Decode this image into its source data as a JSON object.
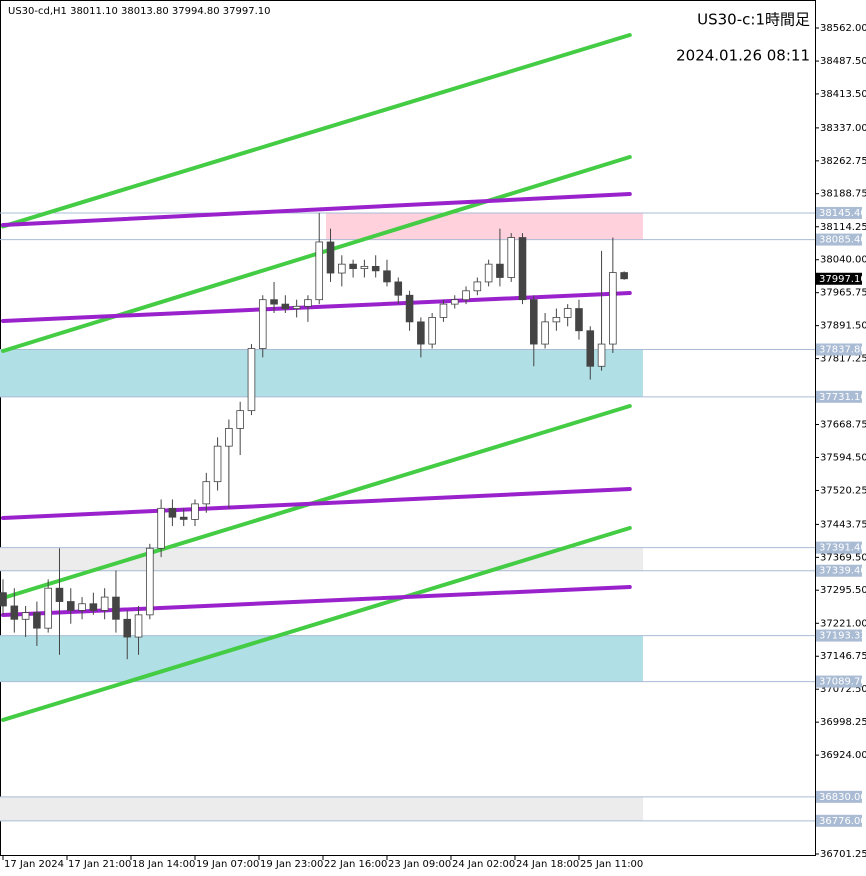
{
  "chart_data": {
    "type": "candlestick",
    "info": "US30-cd,H1  38011.10 38013.80 37994.80 37997.10",
    "title": "US30-c:1時間足",
    "subtitle": "2024.01.26 08:11",
    "xlim": [
      -0.8,
      215.7
    ],
    "ylim": [
      36699,
      38625.1
    ],
    "xticks": [
      {
        "value": 0,
        "label": "17 Jan 2024"
      },
      {
        "value": 17,
        "label": "17 Jan 21:00"
      },
      {
        "value": 34,
        "label": "18 Jan 14:00"
      },
      {
        "value": 51,
        "label": "19 Jan 07:00"
      },
      {
        "value": 68,
        "label": "19 Jan 23:00"
      },
      {
        "value": 85,
        "label": "22 Jan 16:00"
      },
      {
        "value": 102,
        "label": "23 Jan 09:00"
      },
      {
        "value": 119,
        "label": "24 Jan 02:00"
      },
      {
        "value": 136,
        "label": "24 Jan 18:00"
      },
      {
        "value": 153,
        "label": "25 Jan 11:00"
      }
    ],
    "yticks": [
      {
        "value": 38562,
        "label": "38562.00"
      },
      {
        "value": 38487.5,
        "label": "38487.50"
      },
      {
        "value": 38413.5,
        "label": "38413.50"
      },
      {
        "value": 38337,
        "label": "38337.00"
      },
      {
        "value": 38262.75,
        "label": "38262.75"
      },
      {
        "value": 38188.75,
        "label": "38188.75"
      },
      {
        "value": 38114.25,
        "label": "38114.25"
      },
      {
        "value": 38040,
        "label": "38040.00"
      },
      {
        "value": 37965.75,
        "label": "37965.75"
      },
      {
        "value": 37891.5,
        "label": "37891.50"
      },
      {
        "value": 37817.25,
        "label": "37817.25"
      },
      {
        "value": 37668.75,
        "label": "37668.75"
      },
      {
        "value": 37594.5,
        "label": "37594.50"
      },
      {
        "value": 37520.25,
        "label": "37520.25"
      },
      {
        "value": 37443.75,
        "label": "37443.75"
      },
      {
        "value": 37369.5,
        "label": "37369.50"
      },
      {
        "value": 37295.5,
        "label": "37295.50"
      },
      {
        "value": 37221,
        "label": "37221.00"
      },
      {
        "value": 37146.75,
        "label": "37146.75"
      },
      {
        "value": 37072.5,
        "label": "37072.50"
      },
      {
        "value": 36998.25,
        "label": "36998.25"
      },
      {
        "value": 36924,
        "label": "36924.00"
      },
      {
        "value": 36701.25,
        "label": "36701.25"
      }
    ],
    "x": [
      0,
      3,
      6,
      9,
      12,
      15,
      18,
      21,
      24,
      27,
      30,
      33,
      36,
      39,
      42,
      45,
      48,
      51,
      54,
      57,
      60,
      63,
      66,
      69,
      72,
      75,
      78,
      81,
      84,
      87,
      90,
      93,
      96,
      99,
      102,
      105,
      108,
      111,
      114,
      117,
      120,
      123,
      126,
      129,
      132,
      135,
      138,
      141,
      144,
      147,
      150,
      153,
      156,
      159,
      162,
      165
    ],
    "open": [
      37290,
      37260,
      37230,
      37245,
      37210,
      37300,
      37270,
      37250,
      37265,
      37250,
      37280,
      37230,
      37190,
      37240,
      37390,
      37480,
      37460,
      37455,
      37490,
      37540,
      37620,
      37660,
      37700,
      37840,
      37950,
      37940,
      37930,
      37935,
      37950,
      38080,
      38010,
      38030,
      38020,
      38025,
      38015,
      37990,
      37960,
      37900,
      37850,
      37910,
      37940,
      37950,
      37970,
      37990,
      38030,
      38000,
      38090,
      37950,
      37850,
      37900,
      37910,
      37930,
      37880,
      37800,
      37850,
      38011.1
    ],
    "high": [
      37320,
      37300,
      37260,
      37270,
      37320,
      37390,
      37300,
      37280,
      37290,
      37300,
      37340,
      37250,
      37260,
      37400,
      37500,
      37500,
      37480,
      37500,
      37560,
      37640,
      37680,
      37720,
      37850,
      37960,
      37990,
      37960,
      37950,
      37960,
      38145,
      38110,
      38050,
      38040,
      38040,
      38050,
      38040,
      38000,
      37970,
      37910,
      37920,
      37950,
      37960,
      37980,
      38000,
      38040,
      38110,
      38100,
      38100,
      37960,
      37920,
      37930,
      37940,
      37950,
      37890,
      38060,
      38090,
      38013.8
    ],
    "low": [
      37240,
      37200,
      37190,
      37170,
      37200,
      37150,
      37220,
      37230,
      37240,
      37230,
      37200,
      37140,
      37150,
      37230,
      37370,
      37440,
      37440,
      37440,
      37470,
      37520,
      37480,
      37600,
      37690,
      37820,
      37920,
      37920,
      37910,
      37900,
      37940,
      37990,
      37980,
      38000,
      38000,
      38000,
      37980,
      37940,
      37880,
      37820,
      37840,
      37900,
      37930,
      37940,
      37960,
      37980,
      37980,
      37990,
      37940,
      37800,
      37840,
      37880,
      37890,
      37860,
      37770,
      37790,
      37830,
      37994.8
    ],
    "close": [
      37260,
      37230,
      37245,
      37210,
      37300,
      37270,
      37250,
      37265,
      37250,
      37280,
      37230,
      37190,
      37240,
      37390,
      37480,
      37460,
      37455,
      37490,
      37540,
      37620,
      37660,
      37700,
      37840,
      37950,
      37940,
      37930,
      37935,
      37950,
      38080,
      38010,
      38030,
      38020,
      38025,
      38015,
      37990,
      37960,
      37900,
      37850,
      37910,
      37940,
      37950,
      37970,
      37990,
      38030,
      38000,
      38090,
      37950,
      37850,
      37900,
      37910,
      37930,
      37880,
      37800,
      37850,
      38011.1,
      37997.1
    ],
    "zones": [
      {
        "color": "#ffd1dc",
        "from": 85.8,
        "to": 170,
        "low": 38085.4,
        "high": 38145.4
      },
      {
        "color": "#b0dfe5",
        "from": -0.8,
        "to": 170,
        "low": 37731.16,
        "high": 37837.8
      },
      {
        "color": "#ececec",
        "from": -0.8,
        "to": 170,
        "low": 37339.4,
        "high": 37391.4
      },
      {
        "color": "#b0dfe5",
        "from": -0.8,
        "to": 170,
        "low": 37089.7,
        "high": 37193.33
      },
      {
        "color": "#ececec",
        "from": -0.8,
        "to": 170,
        "low": 36776,
        "high": 36830
      }
    ],
    "levels": [
      {
        "value": 38145.4,
        "label": "38145.40"
      },
      {
        "value": 38085.4,
        "label": "38085.40"
      },
      {
        "value": 37837.8,
        "label": "37837.80"
      },
      {
        "value": 37731.16,
        "label": "37731.16"
      },
      {
        "value": 37391.4,
        "label": "37391.40"
      },
      {
        "value": 37339.4,
        "label": "37339.40"
      },
      {
        "value": 37193.33,
        "label": "37193.33"
      },
      {
        "value": 37089.7,
        "label": "37089.70"
      },
      {
        "value": 36830,
        "label": "36830.00"
      },
      {
        "value": 36776,
        "label": "36776.00"
      }
    ],
    "current": {
      "value": 37997.1,
      "label": "37997.10"
    },
    "trendlines": [
      {
        "color": "#44cc44",
        "x": [
          0,
          166.5
        ],
        "values": [
          38115.0,
          38546.2
        ]
      },
      {
        "color": "#44cc44",
        "x": [
          0,
          166.5
        ],
        "values": [
          37834.4,
          38271.4
        ]
      },
      {
        "color": "#44cc44",
        "x": [
          0,
          166.5
        ],
        "values": [
          37278.0,
          37710.5
        ]
      },
      {
        "color": "#44cc44",
        "x": [
          0,
          166.5
        ],
        "values": [
          37003.2,
          37435.7
        ]
      },
      {
        "color": "#9a22cc",
        "x": [
          0,
          166.5
        ],
        "values": [
          38118.2,
          38188.1
        ]
      },
      {
        "color": "#9a22cc",
        "x": [
          0,
          166.5
        ],
        "values": [
          37902.0,
          37965.0
        ]
      },
      {
        "color": "#9a22cc",
        "x": [
          0,
          166.5
        ],
        "values": [
          37458.2,
          37523.5
        ]
      },
      {
        "color": "#9a22cc",
        "x": [
          0,
          166.5
        ],
        "values": [
          37239.7,
          37302.7
        ]
      }
    ]
  }
}
